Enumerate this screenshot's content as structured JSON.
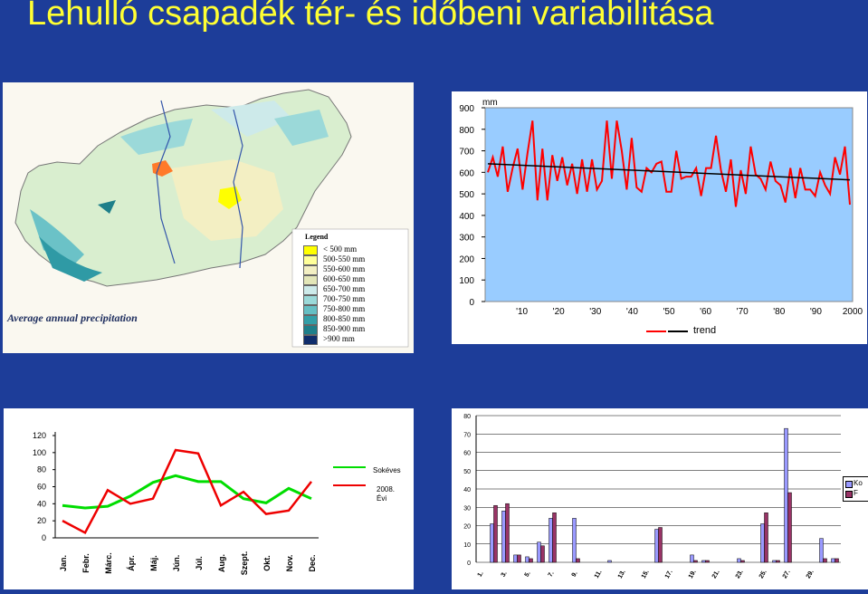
{
  "title": "Lehulló csapadék tér- és időbeni variabilitása",
  "map": {
    "caption": "Average annual precipitation",
    "legend_title": "Legend",
    "legend": [
      {
        "label": "< 500 mm",
        "color": "#ffff00"
      },
      {
        "label": "500-550 mm",
        "color": "#ffff99"
      },
      {
        "label": "550-600 mm",
        "color": "#f3efc3"
      },
      {
        "label": "600-650 mm",
        "color": "#e3e6b8"
      },
      {
        "label": "650-700 mm",
        "color": "#cdeaea"
      },
      {
        "label": "700-750 mm",
        "color": "#9bd9d9"
      },
      {
        "label": "750-800 mm",
        "color": "#66bfc4"
      },
      {
        "label": "800-850 mm",
        "color": "#339fa8"
      },
      {
        "label": "850-900 mm",
        "color": "#1e7f8a"
      },
      {
        "label": ">900 mm",
        "color": "#0f2d6b"
      }
    ]
  },
  "charts": {
    "annual": {
      "unit": "mm",
      "legend": "trend",
      "yticks": [
        "900",
        "800",
        "700",
        "600",
        "500",
        "400",
        "300",
        "200",
        "100",
        "0"
      ],
      "xticks": [
        "'10",
        "'20",
        "'30",
        "'40",
        "'50",
        "'60",
        "'70",
        "'80",
        "'90",
        "2000"
      ]
    },
    "monthly": {
      "legend1": "Sokéves",
      "legend2": "2008. Évi"
    },
    "daily": {
      "legend1": "Ko",
      "legend2": "F"
    }
  },
  "chart_data": [
    {
      "type": "line",
      "ylim": [
        0,
        900
      ],
      "x_start": 1901,
      "series": [
        {
          "name": "",
          "color": "#ff0000",
          "values": [
            600,
            670,
            580,
            720,
            510,
            620,
            710,
            520,
            690,
            840,
            470,
            710,
            470,
            680,
            560,
            670,
            540,
            640,
            500,
            660,
            510,
            660,
            520,
            560,
            840,
            570,
            840,
            700,
            520,
            760,
            530,
            510,
            620,
            600,
            640,
            650,
            510,
            510,
            700,
            570,
            580,
            580,
            620,
            490,
            620,
            620,
            770,
            610,
            510,
            660,
            440,
            610,
            500,
            720,
            590,
            570,
            520,
            650,
            560,
            540,
            460,
            620,
            480,
            620,
            520,
            520,
            490,
            600,
            540,
            500,
            670,
            590,
            720,
            450
          ]
        },
        {
          "name": "trend",
          "color": "#000000",
          "values": [
            640,
            565
          ]
        }
      ]
    },
    {
      "type": "line",
      "categories": [
        "Jan.",
        "Febr.",
        "Márc.",
        "Ápr.",
        "Máj.",
        "Jún.",
        "Júl.",
        "Aug.",
        "Szept.",
        "Okt.",
        "Nov.",
        "Dec."
      ],
      "ylim": [
        0,
        120
      ],
      "yticks": [
        0,
        20,
        40,
        60,
        80,
        100,
        120
      ],
      "series": [
        {
          "name": "Sokéves",
          "color": "#00dd00",
          "values": [
            38,
            35,
            37,
            49,
            65,
            73,
            66,
            66,
            46,
            41,
            58,
            46
          ]
        },
        {
          "name": "2008. Évi",
          "color": "#ee0000",
          "values": [
            20,
            6,
            56,
            40,
            46,
            103,
            99,
            38,
            54,
            28,
            32,
            66
          ]
        }
      ]
    },
    {
      "type": "bar",
      "ylim": [
        0,
        80
      ],
      "yticks": [
        0,
        10,
        20,
        30,
        40,
        50,
        60,
        70,
        80
      ],
      "categories": [
        "1.",
        "2.",
        "3.",
        "4.",
        "5.",
        "6.",
        "7.",
        "8.",
        "9.",
        "10.",
        "11.",
        "12.",
        "13.",
        "14.",
        "15.",
        "16.",
        "17.",
        "18.",
        "19.",
        "20.",
        "21.",
        "22.",
        "23.",
        "24.",
        "25.",
        "26.",
        "27.",
        "28.",
        "29.",
        "30.",
        "31."
      ],
      "xtick_labels": [
        "1.",
        "3.",
        "5.",
        "7.",
        "9.",
        "11.",
        "13.",
        "15.",
        "17.",
        "19.",
        "21.",
        "23.",
        "25.",
        "27.",
        "29."
      ],
      "series": [
        {
          "name": "Ko",
          "color": "#9999ff",
          "values": [
            0,
            21,
            28,
            4,
            3,
            11,
            24,
            0,
            24,
            0,
            0,
            1,
            0,
            0,
            0,
            18,
            0,
            0,
            4,
            1,
            0,
            0,
            2,
            0,
            21,
            1,
            73,
            0,
            0,
            13,
            2
          ]
        },
        {
          "name": "F",
          "color": "#993366",
          "values": [
            0,
            31,
            32,
            4,
            2,
            9,
            27,
            0,
            2,
            0,
            0,
            0,
            0,
            0,
            0,
            19,
            0,
            0,
            1,
            1,
            0,
            0,
            1,
            0,
            27,
            1,
            38,
            0,
            0,
            2,
            2
          ]
        }
      ]
    }
  ]
}
